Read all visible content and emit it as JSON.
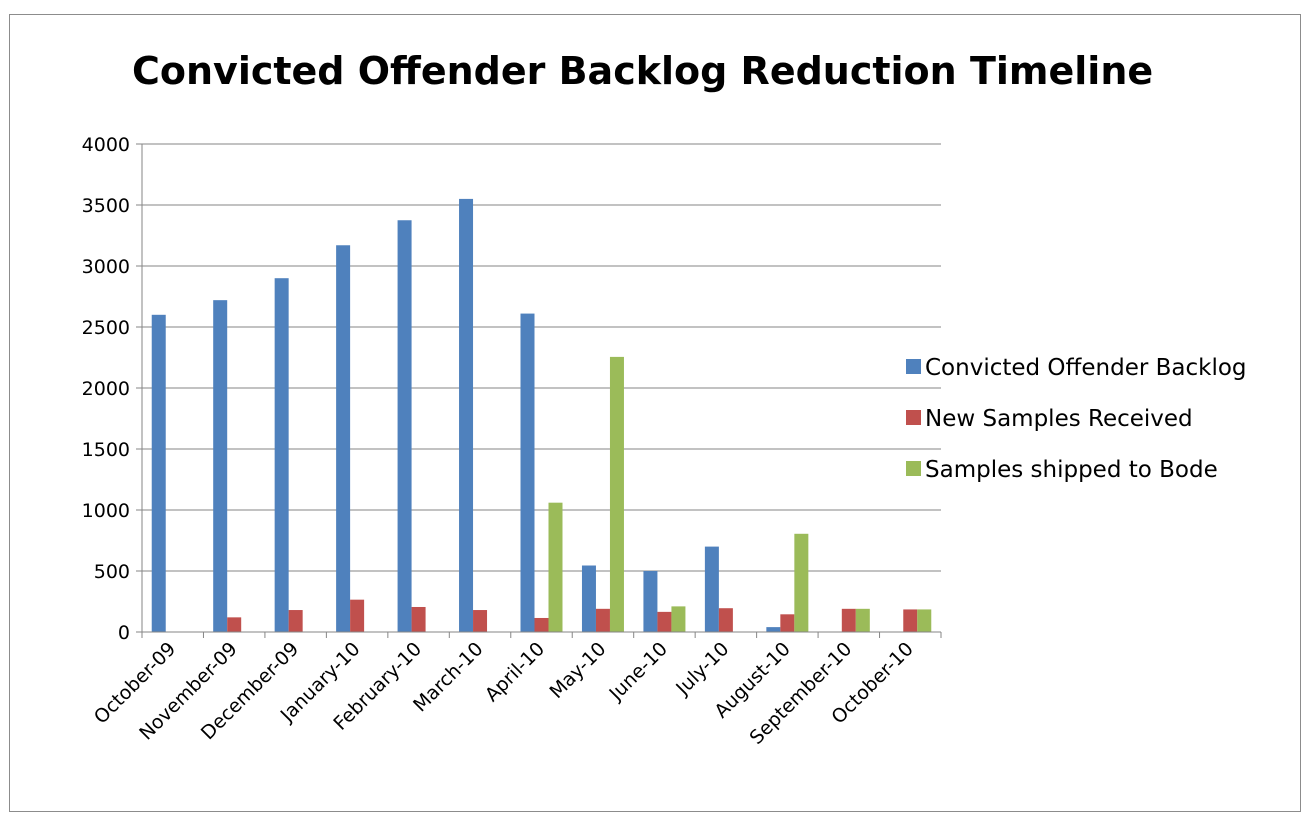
{
  "chart_data": {
    "type": "bar",
    "title": "Convicted Offender Backlog Reduction Timeline",
    "xlabel": "",
    "ylabel": "",
    "ylim": [
      0,
      4000
    ],
    "yticks": [
      0,
      500,
      1000,
      1500,
      2000,
      2500,
      3000,
      3500,
      4000
    ],
    "grid": true,
    "legend_position": "right",
    "categories": [
      "October-09",
      "November-09",
      "December-09",
      "January-10",
      "February-10",
      "March-10",
      "April-10",
      "May-10",
      "June-10",
      "July-10",
      "August-10",
      "September-10",
      "October-10"
    ],
    "series": [
      {
        "name": "Convicted Offender Backlog",
        "color": "#4f81bd",
        "values": [
          2600,
          2720,
          2900,
          3170,
          3375,
          3550,
          2610,
          545,
          500,
          700,
          40,
          0,
          0
        ]
      },
      {
        "name": "New Samples Received",
        "color": "#c0504d",
        "values": [
          0,
          120,
          180,
          265,
          205,
          180,
          115,
          190,
          165,
          195,
          145,
          190,
          185
        ]
      },
      {
        "name": "Samples shipped to Bode",
        "color": "#9bbb59",
        "values": [
          0,
          0,
          0,
          0,
          0,
          0,
          1060,
          2255,
          210,
          0,
          805,
          190,
          185
        ]
      }
    ]
  }
}
